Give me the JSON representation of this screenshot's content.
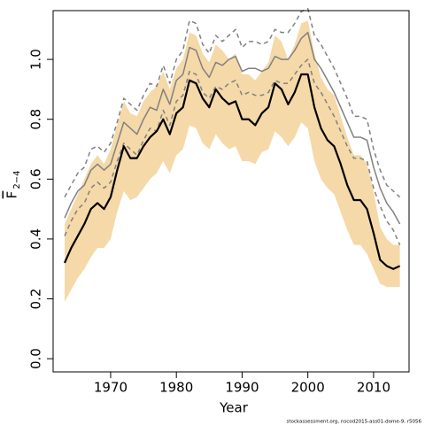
{
  "chart_data": {
    "type": "line",
    "x_label": "Year",
    "y_label": "F",
    "y_label_subscript": "2−4",
    "footnote": "stockassessment.org, nscod2015-ass01-dome-9, r5056",
    "x": [
      1963,
      1964,
      1965,
      1966,
      1967,
      1968,
      1969,
      1970,
      1971,
      1972,
      1973,
      1974,
      1975,
      1976,
      1977,
      1978,
      1979,
      1980,
      1981,
      1982,
      1983,
      1984,
      1985,
      1986,
      1987,
      1988,
      1989,
      1990,
      1991,
      1992,
      1993,
      1994,
      1995,
      1996,
      1997,
      1998,
      1999,
      2000,
      2001,
      2002,
      2003,
      2004,
      2005,
      2006,
      2007,
      2008,
      2009,
      2010,
      2011,
      2012,
      2013,
      2014
    ],
    "band": {
      "color": "#f5d9a8",
      "lower": [
        0.19,
        0.23,
        0.27,
        0.3,
        0.34,
        0.37,
        0.37,
        0.4,
        0.49,
        0.56,
        0.53,
        0.54,
        0.57,
        0.6,
        0.62,
        0.66,
        0.62,
        0.68,
        0.7,
        0.78,
        0.77,
        0.72,
        0.7,
        0.75,
        0.72,
        0.7,
        0.71,
        0.66,
        0.66,
        0.65,
        0.69,
        0.7,
        0.76,
        0.74,
        0.71,
        0.74,
        0.79,
        0.77,
        0.66,
        0.6,
        0.57,
        0.55,
        0.49,
        0.43,
        0.38,
        0.38,
        0.35,
        0.3,
        0.25,
        0.24,
        0.24,
        0.24
      ],
      "upper": [
        0.45,
        0.5,
        0.55,
        0.6,
        0.65,
        0.68,
        0.65,
        0.7,
        0.78,
        0.86,
        0.82,
        0.81,
        0.86,
        0.89,
        0.91,
        0.96,
        0.9,
        0.97,
        1.0,
        1.09,
        1.08,
        1.02,
        0.99,
        1.05,
        1.03,
        1.0,
        1.02,
        0.95,
        0.95,
        0.93,
        0.96,
        0.99,
        1.08,
        1.06,
        1.0,
        1.05,
        1.12,
        1.13,
        1.02,
        0.94,
        0.9,
        0.88,
        0.81,
        0.74,
        0.68,
        0.68,
        0.65,
        0.56,
        0.44,
        0.4,
        0.38,
        0.38
      ]
    },
    "series": [
      {
        "color": "#000000",
        "width": 2.2,
        "dash": "none",
        "values": [
          0.32,
          0.37,
          0.41,
          0.45,
          0.5,
          0.52,
          0.5,
          0.54,
          0.63,
          0.71,
          0.67,
          0.67,
          0.71,
          0.74,
          0.76,
          0.8,
          0.75,
          0.82,
          0.84,
          0.93,
          0.92,
          0.87,
          0.84,
          0.9,
          0.87,
          0.85,
          0.86,
          0.8,
          0.8,
          0.78,
          0.82,
          0.84,
          0.92,
          0.9,
          0.85,
          0.89,
          0.95,
          0.95,
          0.84,
          0.77,
          0.73,
          0.71,
          0.65,
          0.58,
          0.53,
          0.53,
          0.5,
          0.42,
          0.33,
          0.31,
          0.3,
          0.31
        ]
      },
      {
        "color": "#808080",
        "width": 1.5,
        "dash": "none",
        "values": [
          0.47,
          0.52,
          0.56,
          0.58,
          0.63,
          0.65,
          0.63,
          0.65,
          0.72,
          0.79,
          0.77,
          0.75,
          0.8,
          0.84,
          0.83,
          0.9,
          0.85,
          0.93,
          0.95,
          1.04,
          1.03,
          0.97,
          0.94,
          0.99,
          0.98,
          1.0,
          1.01,
          0.96,
          0.97,
          0.97,
          0.96,
          0.97,
          1.01,
          1.0,
          1.0,
          1.03,
          1.07,
          1.09,
          1.0,
          0.97,
          0.93,
          0.89,
          0.84,
          0.79,
          0.74,
          0.74,
          0.73,
          0.64,
          0.57,
          0.52,
          0.49,
          0.45
        ]
      },
      {
        "color": "#808080",
        "width": 1.5,
        "dash": "5,4",
        "values": [
          0.54,
          0.58,
          0.62,
          0.64,
          0.7,
          0.71,
          0.69,
          0.72,
          0.79,
          0.87,
          0.85,
          0.83,
          0.88,
          0.92,
          0.91,
          0.98,
          0.92,
          1.0,
          1.03,
          1.13,
          1.12,
          1.05,
          1.02,
          1.08,
          1.06,
          1.08,
          1.1,
          1.04,
          1.06,
          1.06,
          1.05,
          1.06,
          1.1,
          1.09,
          1.09,
          1.12,
          1.16,
          1.17,
          1.08,
          1.05,
          1.01,
          0.97,
          0.92,
          0.87,
          0.81,
          0.81,
          0.8,
          0.7,
          0.63,
          0.58,
          0.56,
          0.54
        ]
      },
      {
        "color": "#808080",
        "width": 1.5,
        "dash": "5,4",
        "values": [
          0.41,
          0.46,
          0.5,
          0.52,
          0.57,
          0.59,
          0.57,
          0.59,
          0.66,
          0.72,
          0.7,
          0.68,
          0.73,
          0.77,
          0.76,
          0.83,
          0.78,
          0.86,
          0.88,
          0.96,
          0.95,
          0.89,
          0.87,
          0.91,
          0.9,
          0.92,
          0.93,
          0.88,
          0.89,
          0.88,
          0.88,
          0.89,
          0.93,
          0.92,
          0.92,
          0.95,
          0.98,
          1.0,
          0.92,
          0.89,
          0.85,
          0.81,
          0.76,
          0.71,
          0.67,
          0.67,
          0.66,
          0.57,
          0.51,
          0.46,
          0.43,
          0.38
        ]
      }
    ],
    "xlim": [
      1961.25,
      2015.4
    ],
    "ylim": [
      -0.044,
      1.163
    ],
    "xticks": [
      1970,
      1980,
      1990,
      2000,
      2010
    ],
    "yticks": [
      {
        "value": 0,
        "label": "0.0"
      },
      0.2,
      0.4,
      0.6,
      0.8,
      {
        "value": 1,
        "label": "1.0"
      }
    ]
  }
}
